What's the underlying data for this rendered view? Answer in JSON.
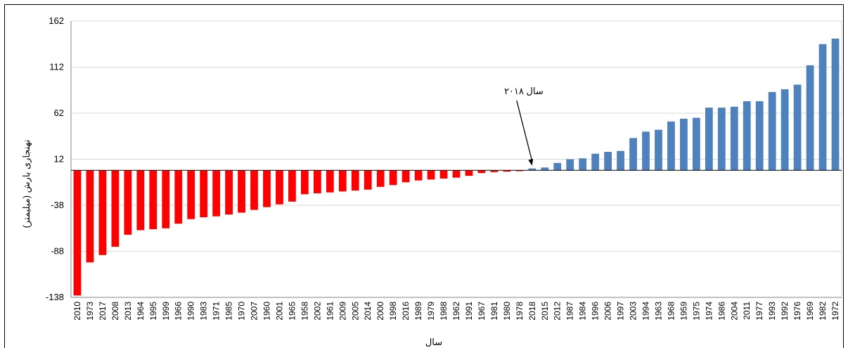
{
  "chart_data": {
    "type": "bar",
    "title": "",
    "xlabel": "سال",
    "ylabel": "نهنجاری بارش (میلیمتر)",
    "ylim": [
      -138,
      162
    ],
    "yticks": [
      162,
      112,
      62,
      12,
      -38,
      -88,
      -138
    ],
    "grid": true,
    "legend": "none",
    "positive_color": "#4f81bd",
    "negative_color": "#ff0000",
    "annotation": {
      "text": "سال ۲۰۱۸",
      "category": "2018"
    },
    "categories": [
      "2010",
      "1973",
      "2017",
      "2008",
      "2013",
      "1964",
      "1995",
      "1999",
      "1966",
      "1990",
      "1983",
      "1971",
      "1985",
      "1970",
      "2007",
      "1960",
      "2001",
      "1965",
      "1958",
      "2002",
      "1961",
      "2009",
      "2005",
      "2014",
      "2000",
      "1998",
      "2016",
      "1989",
      "1979",
      "1988",
      "1962",
      "1991",
      "1967",
      "1981",
      "1980",
      "1978",
      "2018",
      "2015",
      "2012",
      "1987",
      "1984",
      "1996",
      "2006",
      "1997",
      "2003",
      "1994",
      "1963",
      "1968",
      "1959",
      "1975",
      "1974",
      "1986",
      "2004",
      "2011",
      "1977",
      "1993",
      "1992",
      "1976",
      "1969",
      "1982",
      "1972"
    ],
    "values": [
      -136,
      -100,
      -92,
      -83,
      -70,
      -65,
      -64,
      -63,
      -58,
      -53,
      -51,
      -50,
      -48,
      -46,
      -43,
      -40,
      -37,
      -34,
      -26,
      -25,
      -24,
      -23,
      -22,
      -21,
      -18,
      -16,
      -13,
      -11,
      -10,
      -9,
      -8,
      -6,
      -3,
      -2,
      -1.5,
      -1,
      2,
      3,
      8,
      12,
      13,
      18,
      20,
      21,
      35,
      42,
      44,
      53,
      56,
      57,
      68,
      68,
      69,
      75,
      75,
      85,
      88,
      93,
      114,
      137,
      143
    ]
  }
}
